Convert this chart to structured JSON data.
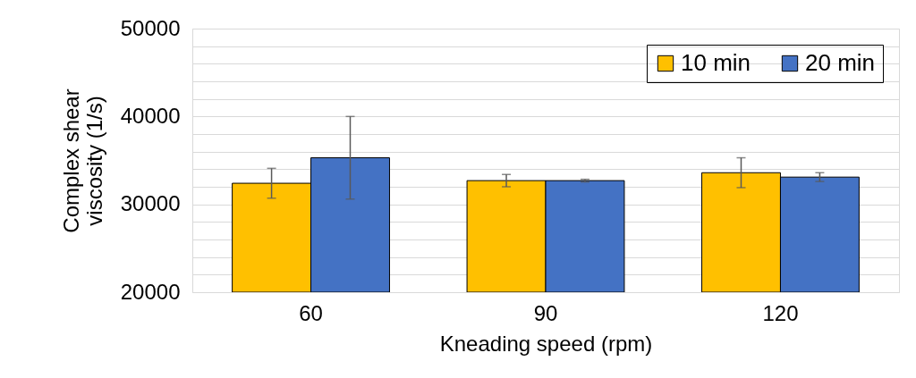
{
  "chart_data": {
    "type": "bar",
    "xlabel": "Kneading speed (rpm)",
    "ylabel": "Complex shear viscosity (1/s)",
    "categories": [
      "60",
      "90",
      "120"
    ],
    "series": [
      {
        "name": "10 min",
        "color": "#ffc000",
        "values": [
          32400,
          32700,
          33600
        ],
        "errors": [
          1700,
          700,
          1700
        ]
      },
      {
        "name": "20 min",
        "color": "#4472c4",
        "values": [
          35300,
          32700,
          33100
        ],
        "errors": [
          4700,
          150,
          500
        ]
      }
    ],
    "ylim": [
      20000,
      50000
    ],
    "yticks": [
      20000,
      {
        "value": 22000,
        "label": null
      },
      {
        "value": 24000,
        "label": null
      },
      {
        "value": 26000,
        "label": null
      },
      {
        "value": 28000,
        "label": null
      },
      30000,
      {
        "value": 32000,
        "label": null
      },
      {
        "value": 34000,
        "label": null
      },
      {
        "value": 36000,
        "label": null
      },
      {
        "value": 38000,
        "label": null
      },
      40000,
      {
        "value": 42000,
        "label": null
      },
      {
        "value": 44000,
        "label": null
      },
      {
        "value": 46000,
        "label": null
      },
      {
        "value": 48000,
        "label": null
      },
      50000
    ],
    "grid": true,
    "legend": "top right"
  }
}
